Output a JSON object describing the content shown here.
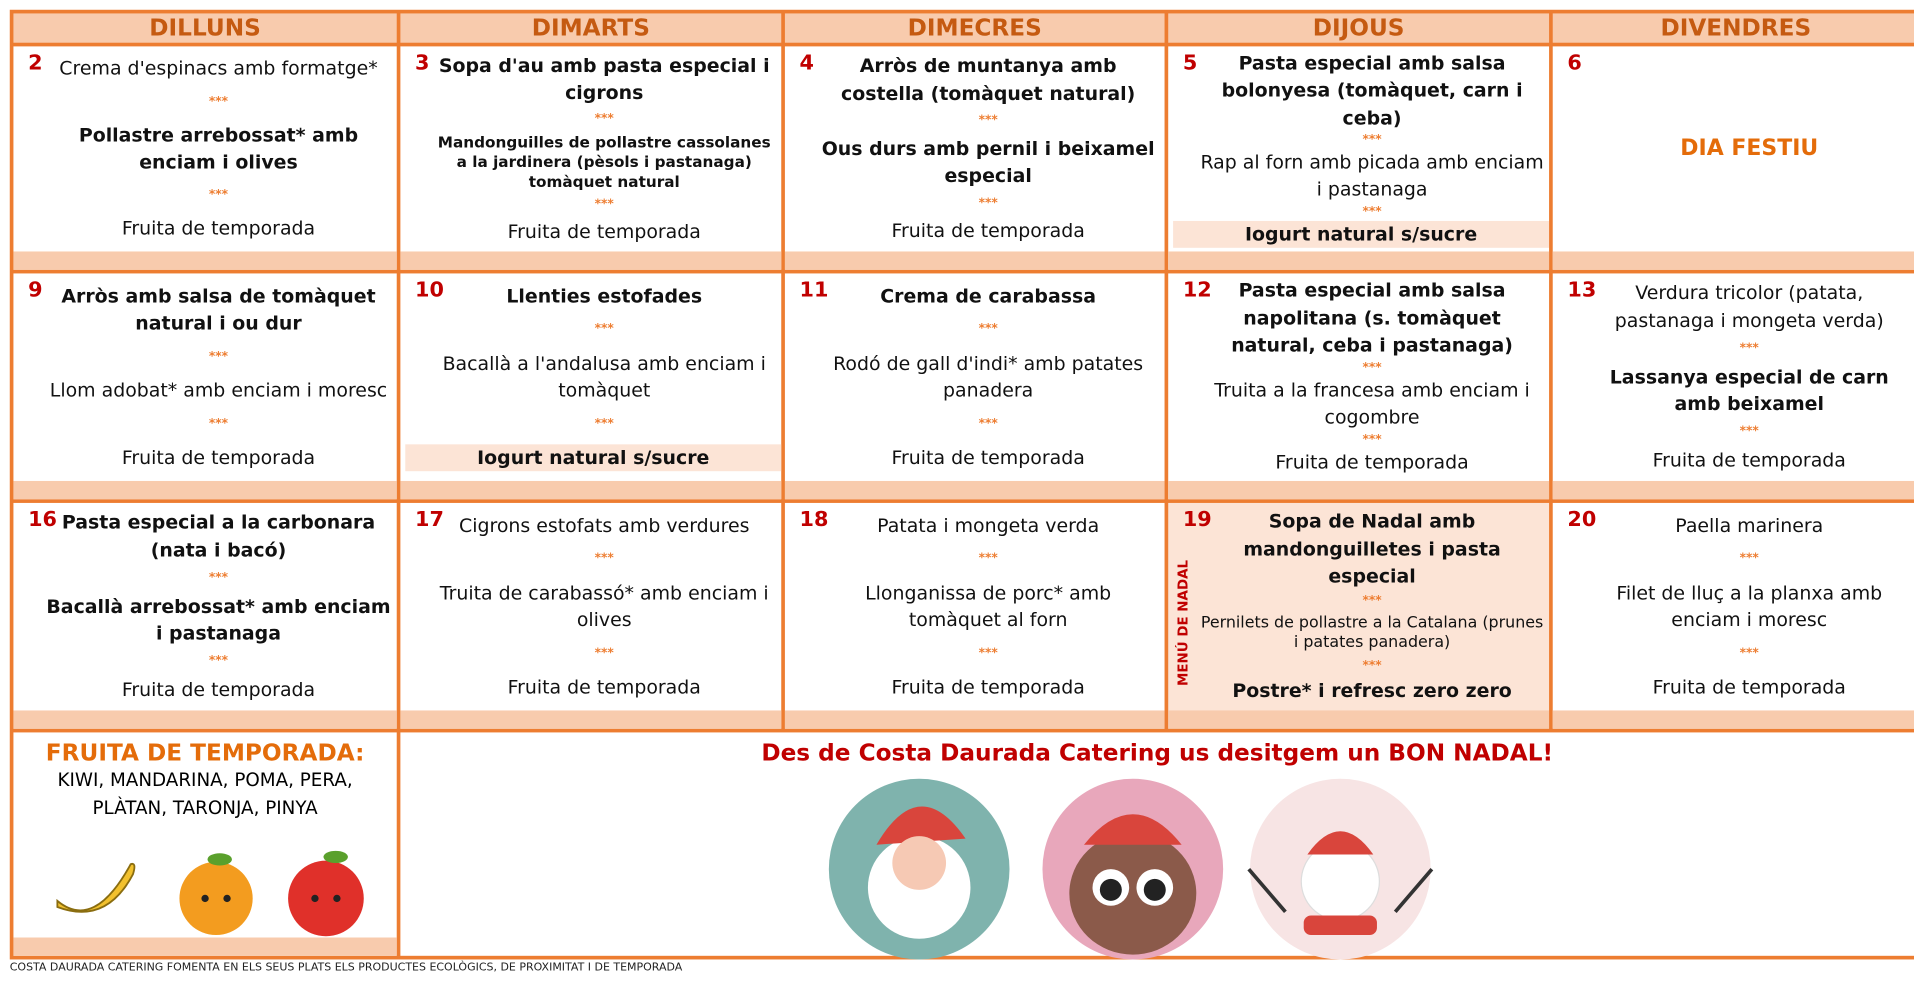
{
  "headers": [
    "DILLUNS",
    "DIMARTS",
    "DIMECRES",
    "DIJOUS",
    "DIVENDRES"
  ],
  "weeks": [
    [
      {
        "day": "2",
        "items": [
          {
            "text": "Crema d'espinacs amb formatge*",
            "style": "normal"
          },
          {
            "text": "***",
            "style": "sep"
          },
          {
            "text": "Pollastre arrebossat* amb enciam i olives",
            "style": "bold"
          },
          {
            "text": "***",
            "style": "sep"
          },
          {
            "text": "Fruita de temporada",
            "style": "normal"
          }
        ]
      },
      {
        "day": "3",
        "items": [
          {
            "text": "Sopa d'au amb pasta especial i cigrons",
            "style": "bold"
          },
          {
            "text": "***",
            "style": "sep"
          },
          {
            "text": "Mandonguilles de pollastre cassolanes a la jardinera (pèsols i pastanaga) tomàquet natural",
            "style": "small-bold"
          },
          {
            "text": "***",
            "style": "sep"
          },
          {
            "text": "Fruita de temporada",
            "style": "normal"
          }
        ]
      },
      {
        "day": "4",
        "items": [
          {
            "text": "Arròs de muntanya amb costella (tomàquet natural)",
            "style": "bold"
          },
          {
            "text": "***",
            "style": "sep"
          },
          {
            "text": "Ous durs amb pernil i beixamel especial",
            "style": "bold"
          },
          {
            "text": "***",
            "style": "sep"
          },
          {
            "text": "Fruita de temporada",
            "style": "normal"
          }
        ]
      },
      {
        "day": "5",
        "items": [
          {
            "text": "Pasta especial amb salsa bolonyesa (tomàquet, carn i ceba)",
            "style": "bold"
          },
          {
            "text": "***",
            "style": "sep"
          },
          {
            "text": "Rap al forn amb picada amb enciam i pastanaga",
            "style": "normal"
          },
          {
            "text": "***",
            "style": "sep"
          },
          {
            "text": "Iogurt natural s/sucre",
            "style": "highlight"
          }
        ]
      },
      {
        "day": "6",
        "items": [
          {
            "text": "DIA FESTIU",
            "style": "holiday"
          }
        ]
      }
    ],
    [
      {
        "day": "9",
        "items": [
          {
            "text": "Arròs amb salsa de tomàquet natural i ou dur",
            "style": "bold"
          },
          {
            "text": "***",
            "style": "sep"
          },
          {
            "text": "Llom adobat* amb enciam i moresc",
            "style": "normal"
          },
          {
            "text": "***",
            "style": "sep"
          },
          {
            "text": "Fruita de temporada",
            "style": "normal"
          }
        ]
      },
      {
        "day": "10",
        "items": [
          {
            "text": "Llenties estofades",
            "style": "bold"
          },
          {
            "text": "***",
            "style": "sep"
          },
          {
            "text": "Bacallà a l'andalusa amb enciam i tomàquet",
            "style": "normal"
          },
          {
            "text": "***",
            "style": "sep"
          },
          {
            "text": "Iogurt natural s/sucre",
            "style": "highlight"
          }
        ]
      },
      {
        "day": "11",
        "items": [
          {
            "text": "Crema de carabassa",
            "style": "bold"
          },
          {
            "text": "***",
            "style": "sep"
          },
          {
            "text": "Rodó de gall d'indi* amb patates panadera",
            "style": "normal"
          },
          {
            "text": "***",
            "style": "sep"
          },
          {
            "text": "Fruita de temporada",
            "style": "normal"
          }
        ]
      },
      {
        "day": "12",
        "items": [
          {
            "text": "Pasta especial amb salsa napolitana (s. tomàquet natural, ceba i pastanaga)",
            "style": "bold"
          },
          {
            "text": "***",
            "style": "sep"
          },
          {
            "text": "Truita a la francesa amb enciam i cogombre",
            "style": "normal"
          },
          {
            "text": "***",
            "style": "sep"
          },
          {
            "text": "Fruita de temporada",
            "style": "normal"
          }
        ]
      },
      {
        "day": "13",
        "items": [
          {
            "text": "Verdura tricolor (patata, pastanaga i mongeta verda)",
            "style": "normal"
          },
          {
            "text": "***",
            "style": "sep"
          },
          {
            "text": "Lassanya especial de carn amb beixamel",
            "style": "bold"
          },
          {
            "text": "***",
            "style": "sep"
          },
          {
            "text": "Fruita de temporada",
            "style": "normal"
          }
        ]
      }
    ],
    [
      {
        "day": "16",
        "items": [
          {
            "text": "Pasta especial a la carbonara (nata i bacó)",
            "style": "bold"
          },
          {
            "text": "***",
            "style": "sep"
          },
          {
            "text": "Bacallà arrebossat* amb enciam i pastanaga",
            "style": "bold"
          },
          {
            "text": "***",
            "style": "sep"
          },
          {
            "text": "Fruita de temporada",
            "style": "normal"
          }
        ]
      },
      {
        "day": "17",
        "items": [
          {
            "text": "Cigrons estofats amb verdures",
            "style": "normal"
          },
          {
            "text": "***",
            "style": "sep"
          },
          {
            "text": "Truita de carabassó* amb enciam i olives",
            "style": "normal"
          },
          {
            "text": "***",
            "style": "sep"
          },
          {
            "text": "Fruita de temporada",
            "style": "normal"
          }
        ]
      },
      {
        "day": "18",
        "items": [
          {
            "text": "Patata i mongeta verda",
            "style": "normal"
          },
          {
            "text": "***",
            "style": "sep"
          },
          {
            "text": "Llonganissa de porc* amb tomàquet al forn",
            "style": "normal"
          },
          {
            "text": "***",
            "style": "sep"
          },
          {
            "text": "Fruita de temporada",
            "style": "normal"
          }
        ]
      },
      {
        "day": "19",
        "shaded": true,
        "side_label": "MENÚ DE NADAL",
        "items": [
          {
            "text": "Sopa de Nadal amb mandonguilletes i pasta especial",
            "style": "bold"
          },
          {
            "text": "***",
            "style": "sep"
          },
          {
            "text": "Pernilets de pollastre a la Catalana (prunes i patates panadera)",
            "style": "small"
          },
          {
            "text": "***",
            "style": "sep"
          },
          {
            "text": "Postre* i refresc zero zero",
            "style": "bold"
          }
        ]
      },
      {
        "day": "20",
        "items": [
          {
            "text": "Paella marinera",
            "style": "normal"
          },
          {
            "text": "***",
            "style": "sep"
          },
          {
            "text": "Filet de lluç a la planxa amb enciam i moresc",
            "style": "normal"
          },
          {
            "text": "***",
            "style": "sep"
          },
          {
            "text": "Fruita de temporada",
            "style": "normal"
          }
        ]
      }
    ]
  ],
  "fruit": {
    "title": "FRUITA DE TEMPORADA:",
    "list": "KIWI, MANDARINA, POMA, PERA, PLÀTAN, TARONJA, PINYA"
  },
  "message": "Des de Costa Daurada Catering us desitgem un BON NADAL!",
  "footer": "COSTA DAURADA CATERING FOMENTA EN ELS SEUS PLATS ELS PRODUCTES ECOLÒGICS, DE PROXIMITAT I DE TEMPORADA"
}
